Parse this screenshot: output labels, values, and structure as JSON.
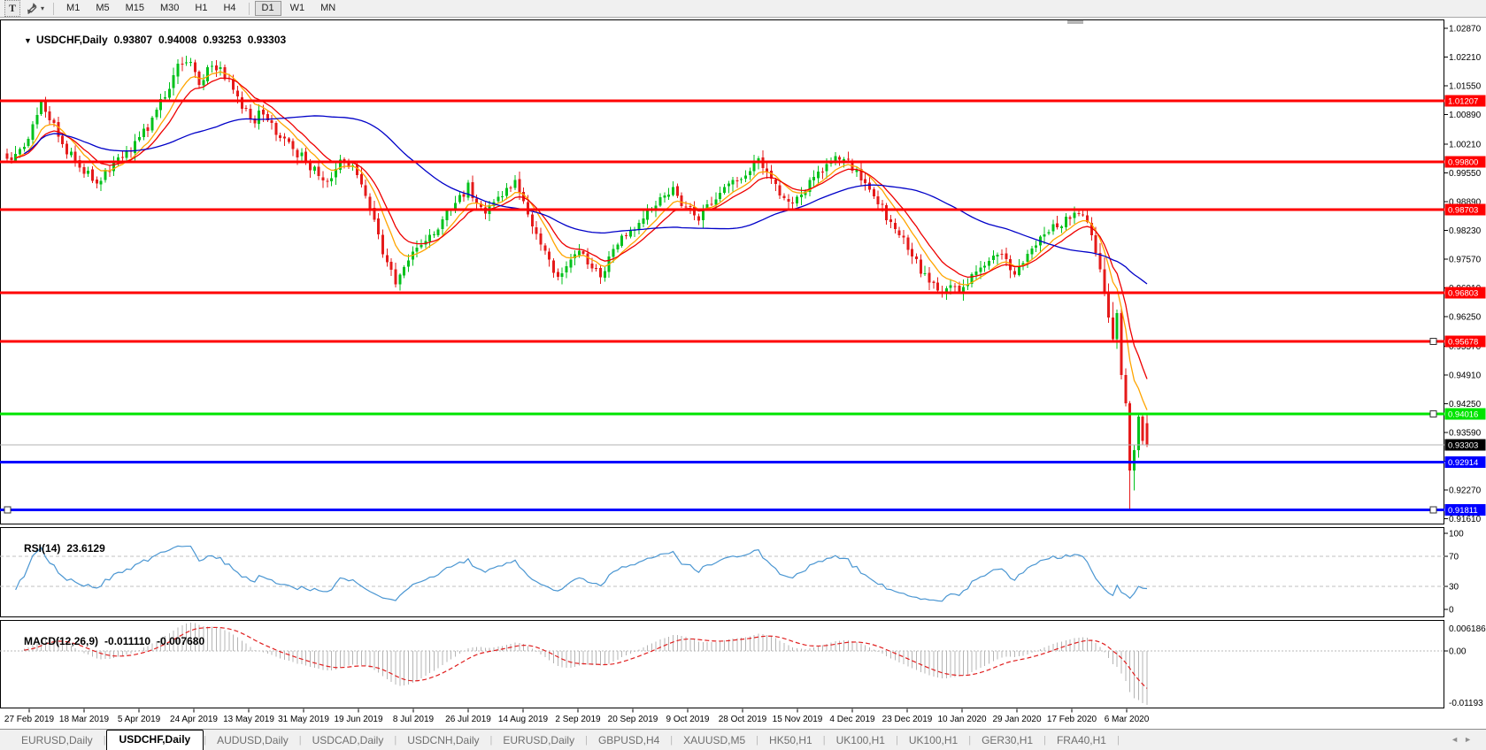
{
  "icons": {
    "collapse": "▼",
    "dropdown_caret": "▾",
    "tab_scroll_left": "◄",
    "tab_scroll_right": "►",
    "text_tool": "T"
  },
  "toolbar": {
    "timeframes": [
      "M1",
      "M5",
      "M15",
      "M30",
      "H1",
      "H4",
      "D1",
      "W1",
      "MN"
    ],
    "active_timeframe": "D1"
  },
  "chart": {
    "collapse_icon": "▼",
    "symbol_label": "USDCHF,Daily",
    "ohlc": {
      "open": "0.93807",
      "high": "0.94008",
      "low": "0.93253",
      "close": "0.93303"
    }
  },
  "rsi_panel": {
    "label": "RSI(14)",
    "value": "23.6129",
    "axis_labels": [
      "100",
      "70",
      "30",
      "0"
    ]
  },
  "macd_panel": {
    "label": "MACD(12,26,9)",
    "macd_value": "-0.011110",
    "signal_value": "-0.007680",
    "axis_labels": [
      "0.006186",
      "0.00",
      "-0.01193"
    ]
  },
  "tabs": {
    "items": [
      "EURUSD,Daily",
      "USDCHF,Daily",
      "AUDUSD,Daily",
      "USDCAD,Daily",
      "USDCNH,Daily",
      "EURUSD,Daily",
      "GBPUSD,H4",
      "XAUUSD,M5",
      "HK50,H1",
      "UK100,H1",
      "UK100,H1",
      "GER30,H1",
      "FRA40,H1"
    ],
    "active_index": 1
  },
  "chart_data": {
    "type": "candlestick",
    "symbol": "USDCHF",
    "timeframe": "Daily",
    "title": "USDCHF,Daily",
    "last_candle_ohlc": {
      "open": 0.93807,
      "high": 0.94008,
      "low": 0.93253,
      "close": 0.93303
    },
    "current_price": 0.93303,
    "colors": {
      "up": "#00C11B",
      "down": "#E51A1A",
      "rsi": "#4a96d2",
      "macd_hist": "#b4b4b4",
      "macd_signal": "#e01f1f",
      "current_line": "#b3b3b3"
    },
    "y_axis": {
      "min": 0.9148,
      "max": 1.0307,
      "ticks": [
        "1.02870",
        "1.02210",
        "1.01550",
        "1.00890",
        "1.00210",
        "0.99550",
        "0.98890",
        "0.98230",
        "0.97570",
        "0.96910",
        "0.96250",
        "0.95570",
        "0.94910",
        "0.94250",
        "0.93590",
        "0.92930",
        "0.92270",
        "0.91610"
      ]
    },
    "x_axis": {
      "labels": [
        "27 Feb 2019",
        "18 Mar 2019",
        "5 Apr 2019",
        "24 Apr 2019",
        "13 May 2019",
        "31 May 2019",
        "19 Jun 2019",
        "8 Jul 2019",
        "26 Jul 2019",
        "14 Aug 2019",
        "2 Sep 2019",
        "20 Sep 2019",
        "9 Oct 2019",
        "28 Oct 2019",
        "15 Nov 2019",
        "4 Dec 2019",
        "23 Dec 2019",
        "10 Jan 2020",
        "29 Jan 2020",
        "17 Feb 2020",
        "6 Mar 2020"
      ],
      "candles_per_label": 13
    },
    "horizontal_lines": [
      {
        "label": "1.01207",
        "value": 1.01207,
        "color": "#FF0000",
        "width": 3,
        "handles": []
      },
      {
        "label": "0.99800",
        "value": 0.998,
        "color": "#FF0000",
        "width": 3,
        "handles": []
      },
      {
        "label": "0.98703",
        "value": 0.98703,
        "color": "#FF0000",
        "width": 3,
        "handles": []
      },
      {
        "label": "0.96803",
        "value": 0.96803,
        "color": "#FF0000",
        "width": 3,
        "handles": []
      },
      {
        "label": "0.95678",
        "value": 0.95678,
        "color": "#FF0000",
        "width": 3,
        "handles": [
          "right"
        ]
      },
      {
        "label": "0.94016",
        "value": 0.94016,
        "color": "#00E400",
        "width": 3,
        "handles": [
          "right"
        ]
      },
      {
        "label": "0.92914",
        "value": 0.92914,
        "color": "#0000FF",
        "width": 3,
        "handles": []
      },
      {
        "label": "0.91811",
        "value": 0.91811,
        "color": "#0000FF",
        "width": 3,
        "handles": [
          "left",
          "right"
        ]
      }
    ],
    "moving_averages": [
      {
        "type": "ema",
        "period": 8,
        "color": "#FFA500"
      },
      {
        "type": "ema",
        "period": 13,
        "color": "#EE0000"
      },
      {
        "type": "sma",
        "period": 50,
        "color": "#0000C8"
      }
    ],
    "candles": {
      "count": 268,
      "note": "approximate close path read off chart; [index, close]",
      "path_anchors": [
        [
          0,
          0.9985
        ],
        [
          5,
          1.0035
        ],
        [
          8,
          1.0112
        ],
        [
          10,
          1.0085
        ],
        [
          13,
          1.002
        ],
        [
          17,
          0.9972
        ],
        [
          21,
          0.9935
        ],
        [
          25,
          0.9975
        ],
        [
          29,
          1.0012
        ],
        [
          33,
          1.0058
        ],
        [
          37,
          1.0135
        ],
        [
          40,
          1.0198
        ],
        [
          42,
          1.0218
        ],
        [
          45,
          1.0165
        ],
        [
          48,
          1.0205
        ],
        [
          52,
          1.0172
        ],
        [
          55,
          1.0108
        ],
        [
          58,
          1.0078
        ],
        [
          60,
          1.0098
        ],
        [
          63,
          1.0048
        ],
        [
          66,
          1.0018
        ],
        [
          70,
          0.9982
        ],
        [
          73,
          0.9948
        ],
        [
          75,
          0.9932
        ],
        [
          78,
          0.9988
        ],
        [
          81,
          0.9962
        ],
        [
          84,
          0.9908
        ],
        [
          86,
          0.9845
        ],
        [
          88,
          0.9778
        ],
        [
          90,
          0.9722
        ],
        [
          91,
          0.9702
        ],
        [
          94,
          0.9758
        ],
        [
          97,
          0.9788
        ],
        [
          100,
          0.9818
        ],
        [
          103,
          0.9858
        ],
        [
          106,
          0.9898
        ],
        [
          108,
          0.9922
        ],
        [
          110,
          0.9882
        ],
        [
          112,
          0.9858
        ],
        [
          114,
          0.9888
        ],
        [
          117,
          0.9922
        ],
        [
          119,
          0.9938
        ],
        [
          121,
          0.9882
        ],
        [
          123,
          0.9838
        ],
        [
          125,
          0.9792
        ],
        [
          127,
          0.9752
        ],
        [
          129,
          0.9718
        ],
        [
          131,
          0.9742
        ],
        [
          134,
          0.9772
        ],
        [
          136,
          0.9752
        ],
        [
          139,
          0.9722
        ],
        [
          141,
          0.9758
        ],
        [
          144,
          0.9802
        ],
        [
          147,
          0.9832
        ],
        [
          150,
          0.9862
        ],
        [
          153,
          0.9892
        ],
        [
          156,
          0.9912
        ],
        [
          159,
          0.9878
        ],
        [
          162,
          0.9856
        ],
        [
          165,
          0.9886
        ],
        [
          168,
          0.9916
        ],
        [
          171,
          0.9942
        ],
        [
          174,
          0.9968
        ],
        [
          176,
          0.999
        ],
        [
          178,
          0.9952
        ],
        [
          181,
          0.9912
        ],
        [
          184,
          0.9878
        ],
        [
          187,
          0.9922
        ],
        [
          190,
          0.9956
        ],
        [
          193,
          0.9986
        ],
        [
          196,
          0.9992
        ],
        [
          199,
          0.9956
        ],
        [
          202,
          0.9916
        ],
        [
          205,
          0.9872
        ],
        [
          208,
          0.9826
        ],
        [
          211,
          0.9782
        ],
        [
          213,
          0.9746
        ],
        [
          215,
          0.9716
        ],
        [
          217,
          0.9692
        ],
        [
          219,
          0.9668
        ],
        [
          221,
          0.9696
        ],
        [
          223,
          0.9672
        ],
        [
          226,
          0.9712
        ],
        [
          229,
          0.9746
        ],
        [
          232,
          0.9776
        ],
        [
          234,
          0.9748
        ],
        [
          236,
          0.9722
        ],
        [
          238,
          0.9752
        ],
        [
          241,
          0.9792
        ],
        [
          244,
          0.9822
        ],
        [
          247,
          0.9842
        ],
        [
          250,
          0.9854
        ],
        [
          253,
          0.9846
        ]
      ],
      "explicit_last_candles_ohlc": [
        [
          0.984,
          0.9853,
          0.98,
          0.9812
        ],
        [
          0.9812,
          0.9831,
          0.9763,
          0.9771
        ],
        [
          0.9771,
          0.9793,
          0.9726,
          0.9734
        ],
        [
          0.9734,
          0.9761,
          0.9672,
          0.9681
        ],
        [
          0.9681,
          0.9701,
          0.9611,
          0.9623
        ],
        [
          0.9623,
          0.9659,
          0.9566,
          0.9573
        ],
        [
          0.9573,
          0.9641,
          0.9551,
          0.9633
        ],
        [
          0.9633,
          0.9646,
          0.9481,
          0.9491
        ],
        [
          0.9491,
          0.9506,
          0.9419,
          0.9426
        ],
        [
          0.9426,
          0.9431,
          0.9182,
          0.9272
        ],
        [
          0.9272,
          0.9331,
          0.9226,
          0.9319
        ],
        [
          0.9319,
          0.9404,
          0.9301,
          0.9396
        ],
        [
          0.9396,
          0.9399,
          0.933,
          0.934
        ],
        [
          0.93807,
          0.94008,
          0.93253,
          0.93303
        ]
      ]
    },
    "rsi": {
      "period": 14,
      "current_value": 23.6129,
      "overbought": 70,
      "oversold": 30,
      "range": [
        0,
        100
      ]
    },
    "macd": {
      "fast": 12,
      "slow": 26,
      "signal": 9,
      "current_macd": -0.01111,
      "current_signal": -0.00768,
      "axis_max": 0.006186,
      "axis_min": -0.01193
    }
  }
}
